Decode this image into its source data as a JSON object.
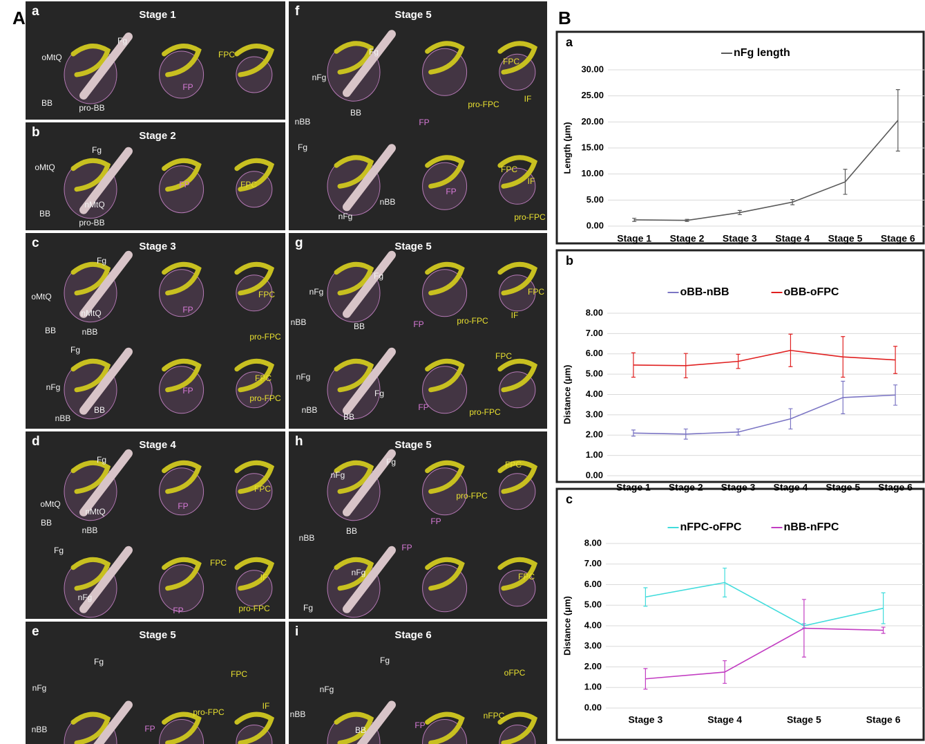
{
  "figure_labels": [
    "A",
    "B"
  ],
  "panels": [
    {
      "letter": "a",
      "title": "Stage 1",
      "labels": [
        "Fg",
        "oMtQ",
        "BB",
        "pro-BB",
        "FPC",
        "FP"
      ]
    },
    {
      "letter": "b",
      "title": "Stage 2",
      "labels": [
        "Fg",
        "oMtQ",
        "nMtQ",
        "BB",
        "pro-BB",
        "FP",
        "FPC"
      ]
    },
    {
      "letter": "c",
      "title": "Stage 3",
      "labels": [
        "Fg",
        "oMtQ",
        "nMtQ",
        "BB",
        "nBB",
        "FP",
        "FPC",
        "pro-FPC",
        "Fg",
        "nFg",
        "BB",
        "nBB",
        "FP",
        "FPC",
        "pro-FPC"
      ]
    },
    {
      "letter": "d",
      "title": "Stage 4",
      "labels": [
        "Fg",
        "oMtQ",
        "nMtQ",
        "BB",
        "nBB",
        "FP",
        "FPC",
        "Fg",
        "nFg",
        "FP",
        "FPC",
        "IF",
        "pro-FPC"
      ]
    },
    {
      "letter": "e",
      "title": "Stage 5",
      "labels": [
        "Fg",
        "nFg",
        "nBB",
        "FP",
        "FPC",
        "IF",
        "pro-FPC"
      ]
    },
    {
      "letter": "f",
      "title": "Stage 5",
      "labels": [
        "Fg",
        "nFg",
        "BB",
        "nBB",
        "FP",
        "FPC",
        "IF",
        "pro-FPC",
        "Fg",
        "nBB",
        "nFg",
        "FP",
        "FPC",
        "IF",
        "pro-FPC"
      ]
    },
    {
      "letter": "g",
      "title": "Stage 5",
      "labels": [
        "Fg",
        "nFg",
        "nBB",
        "BB",
        "FP",
        "FPC",
        "pro-FPC",
        "IF",
        "nFg",
        "Fg",
        "nBB",
        "BB",
        "FP",
        "FPC",
        "pro-FPC"
      ]
    },
    {
      "letter": "h",
      "title": "Stage 5",
      "labels": [
        "Fg",
        "nFg",
        "nBB",
        "BB",
        "FP",
        "FPC",
        "pro-FPC",
        "FP",
        "nFg",
        "Fg",
        "FPC"
      ]
    },
    {
      "letter": "i",
      "title": "Stage 6",
      "labels": [
        "Fg",
        "nFg",
        "nBB",
        "BB",
        "FP",
        "oFPC",
        "nFPC"
      ]
    }
  ],
  "chart_data": [
    {
      "type": "line",
      "label": "a",
      "y_label": "Length (μm)",
      "categories": [
        "Stage 1",
        "Stage 2",
        "Stage 3",
        "Stage 4",
        "Stage 5",
        "Stage 6"
      ],
      "series": [
        {
          "name": "nFg length",
          "color": "#595959",
          "values": [
            1.2,
            1.1,
            2.6,
            4.6,
            8.5,
            20.3
          ],
          "errors": [
            0.3,
            0.2,
            0.4,
            0.5,
            2.4,
            5.9
          ]
        }
      ],
      "ylim": [
        0,
        30
      ],
      "yticks": [
        {
          "value": 0,
          "label": "0.00"
        },
        {
          "value": 5,
          "label": "5.00"
        },
        {
          "value": 10,
          "label": "10.00"
        },
        {
          "value": 15,
          "label": "15.00"
        },
        {
          "value": 20,
          "label": "20.00"
        },
        {
          "value": 25,
          "label": "25.00"
        },
        {
          "value": 30,
          "label": "30.00"
        }
      ],
      "grid": true
    },
    {
      "type": "line",
      "label": "b",
      "y_label": "Distance (μm)",
      "categories": [
        "Stage 1",
        "Stage 2",
        "Stage 3",
        "Stage 4",
        "Stage 5",
        "Stage 6"
      ],
      "series": [
        {
          "name": "oBB-nBB",
          "color": "#7b75c4",
          "values": [
            2.1,
            2.05,
            2.15,
            2.8,
            3.85,
            3.97
          ],
          "errors": [
            0.15,
            0.25,
            0.15,
            0.5,
            0.8,
            0.5
          ]
        },
        {
          "name": "oBB-oFPC",
          "color": "#e02020",
          "values": [
            5.45,
            5.42,
            5.63,
            6.17,
            5.85,
            5.7
          ],
          "errors": [
            0.6,
            0.6,
            0.35,
            0.8,
            1.0,
            0.67
          ]
        }
      ],
      "ylim": [
        0,
        8
      ],
      "yticks": [
        {
          "value": 0,
          "label": "0.00"
        },
        {
          "value": 1,
          "label": "1.00"
        },
        {
          "value": 2,
          "label": "2.00"
        },
        {
          "value": 3,
          "label": "3.00"
        },
        {
          "value": 4,
          "label": "4.00"
        },
        {
          "value": 5,
          "label": "5.00"
        },
        {
          "value": 6,
          "label": "6.00"
        },
        {
          "value": 7,
          "label": "7.00"
        },
        {
          "value": 8,
          "label": "8.00"
        }
      ],
      "grid": true
    },
    {
      "type": "line",
      "label": "c",
      "y_label": "Distance (μm)",
      "categories": [
        "Stage 3",
        "Stage 4",
        "Stage 5",
        "Stage 6"
      ],
      "series": [
        {
          "name": "nFPC-oFPC",
          "color": "#40dcdc",
          "values": [
            5.4,
            6.1,
            4.0,
            4.85
          ],
          "errors": [
            0.45,
            0.7,
            0.1,
            0.75
          ]
        },
        {
          "name": "nBB-nFPC",
          "color": "#c23cc2",
          "values": [
            1.42,
            1.75,
            3.88,
            3.78
          ],
          "errors": [
            0.5,
            0.55,
            1.4,
            0.15
          ]
        }
      ],
      "ylim": [
        0,
        8
      ],
      "yticks": [
        {
          "value": 0,
          "label": "0.00"
        },
        {
          "value": 1,
          "label": "1.00"
        },
        {
          "value": 2,
          "label": "2.00"
        },
        {
          "value": 3,
          "label": "3.00"
        },
        {
          "value": 4,
          "label": "4.00"
        },
        {
          "value": 5,
          "label": "5.00"
        },
        {
          "value": 6,
          "label": "6.00"
        },
        {
          "value": 7,
          "label": "7.00"
        },
        {
          "value": 8,
          "label": "8.00"
        }
      ],
      "grid": true
    }
  ]
}
